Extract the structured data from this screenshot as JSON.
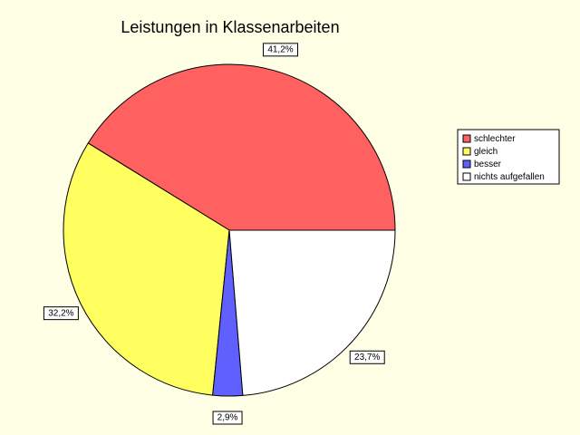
{
  "chart_data": {
    "type": "pie",
    "title": "Leistungen in Klassenarbeiten",
    "categories": [
      "schlechter",
      "gleich",
      "besser",
      "nichts aufgefallen"
    ],
    "values": [
      41.2,
      32.2,
      2.9,
      23.7
    ],
    "value_labels": [
      "41,2%",
      "32,2%",
      "2,9%",
      "23,7%"
    ],
    "colors": [
      "#ff6060",
      "#ffff60",
      "#6060ff",
      "#ffffff"
    ],
    "legend": "right"
  }
}
